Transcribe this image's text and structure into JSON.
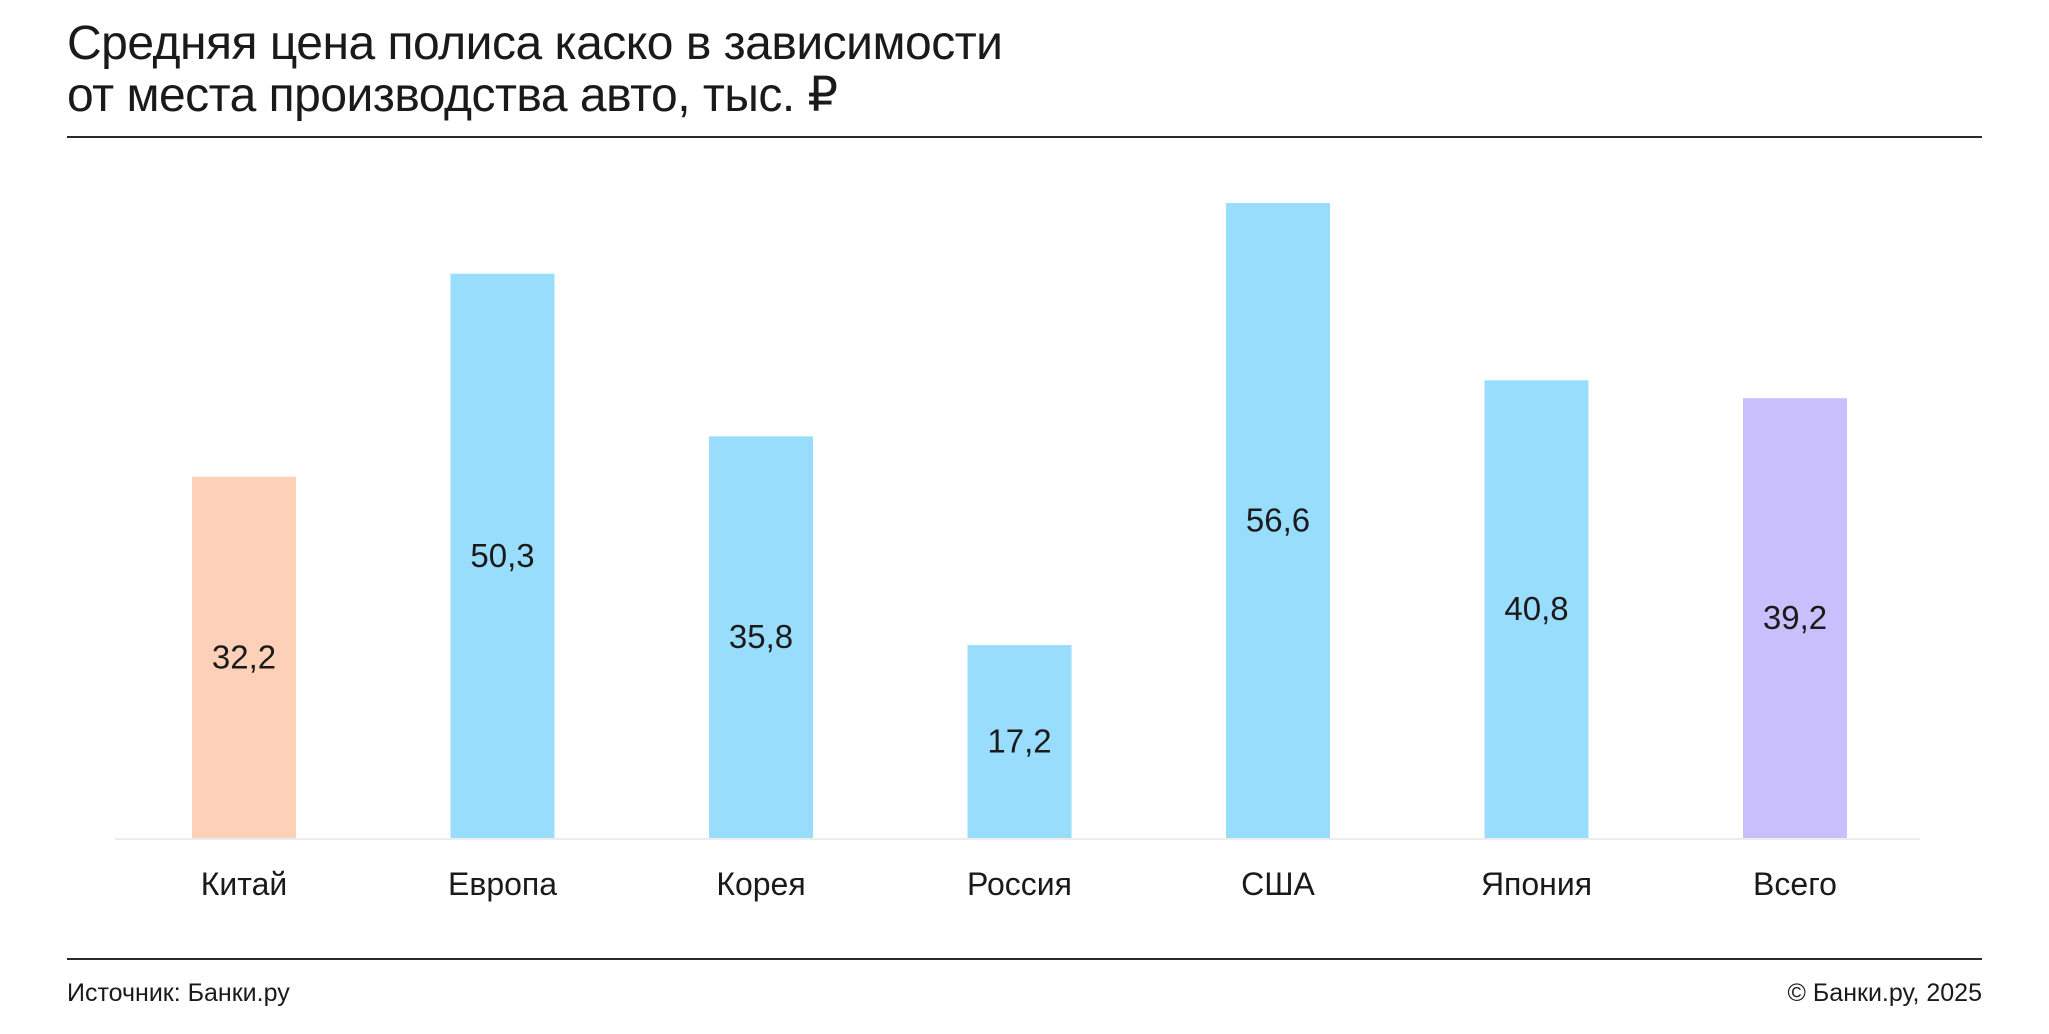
{
  "header": {
    "title_line1": "Средняя цена полиса каско в зависимости",
    "title_line2": "от места производства авто, тыс. ₽"
  },
  "footer": {
    "source": "Источник: Банки.ру",
    "copyright": "© Банки.ру, 2025"
  },
  "chart_data": {
    "type": "bar",
    "title": "Средняя цена полиса каско в зависимости от места производства авто, тыс. ₽",
    "xlabel": "",
    "ylabel": "",
    "categories": [
      "Китай",
      "Европа",
      "Корея",
      "Россия",
      "США",
      "Япония",
      "Всего"
    ],
    "values": [
      32.2,
      50.3,
      35.8,
      17.2,
      56.6,
      40.8,
      39.2
    ],
    "value_labels": [
      "32,2",
      "50,3",
      "35,8",
      "17,2",
      "56,6",
      "40,8",
      "39,2"
    ],
    "ylim": [
      0,
      56.6
    ],
    "grid": false,
    "legend": "none",
    "colors": [
      "#fdd0b8",
      "#99ddfc",
      "#99ddfc",
      "#99ddfc",
      "#99ddfc",
      "#99ddfc",
      "#c8bffc"
    ]
  }
}
